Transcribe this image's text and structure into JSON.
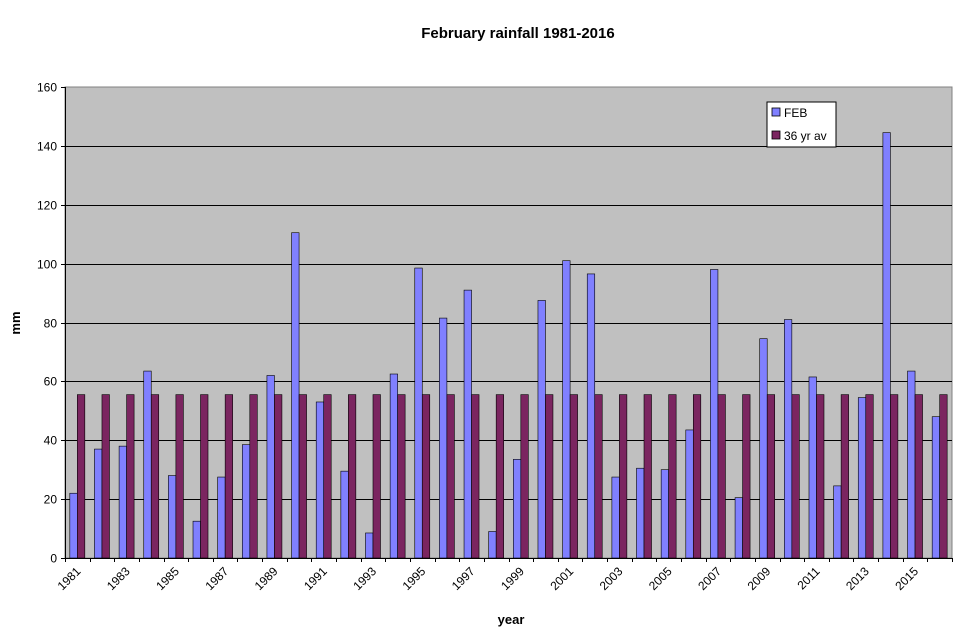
{
  "chart_data": {
    "type": "bar",
    "title": "February rainfall 1981-2016",
    "xlabel": "year",
    "ylabel": "mm",
    "ylim": [
      0,
      160
    ],
    "yticks": [
      0,
      20,
      40,
      60,
      80,
      100,
      120,
      140,
      160
    ],
    "grid": true,
    "legend_position": "top-right",
    "categories": [
      "1981",
      "1982",
      "1983",
      "1984",
      "1985",
      "1986",
      "1987",
      "1988",
      "1989",
      "1990",
      "1991",
      "1992",
      "1993",
      "1994",
      "1995",
      "1996",
      "1997",
      "1998",
      "1999",
      "2000",
      "2001",
      "2002",
      "2003",
      "2004",
      "2005",
      "2006",
      "2007",
      "2008",
      "2009",
      "2010",
      "2011",
      "2012",
      "2013",
      "2014",
      "2015",
      "2016"
    ],
    "tick_labels": [
      "1981",
      "1983",
      "1985",
      "1987",
      "1989",
      "1991",
      "1993",
      "1995",
      "1997",
      "1999",
      "2001",
      "2003",
      "2005",
      "2007",
      "2009",
      "2011",
      "2013",
      "2015"
    ],
    "series": [
      {
        "name": "FEB",
        "color": "#8080ff",
        "values": [
          22,
          37,
          38,
          63.5,
          28,
          12.5,
          27.5,
          38.5,
          62,
          110.5,
          53,
          29.5,
          8.5,
          62.5,
          98.5,
          81.5,
          91,
          9,
          33.5,
          87.5,
          101,
          96.5,
          27.5,
          30.5,
          30,
          43.5,
          98,
          20.5,
          74.5,
          81,
          61.5,
          24.5,
          54.5,
          144.5,
          63.5,
          48
        ]
      },
      {
        "name": "36 yr av",
        "color": "#7b2560",
        "values": [
          55.5,
          55.5,
          55.5,
          55.5,
          55.5,
          55.5,
          55.5,
          55.5,
          55.5,
          55.5,
          55.5,
          55.5,
          55.5,
          55.5,
          55.5,
          55.5,
          55.5,
          55.5,
          55.5,
          55.5,
          55.5,
          55.5,
          55.5,
          55.5,
          55.5,
          55.5,
          55.5,
          55.5,
          55.5,
          55.5,
          55.5,
          55.5,
          55.5,
          55.5,
          55.5,
          55.5
        ]
      }
    ]
  }
}
